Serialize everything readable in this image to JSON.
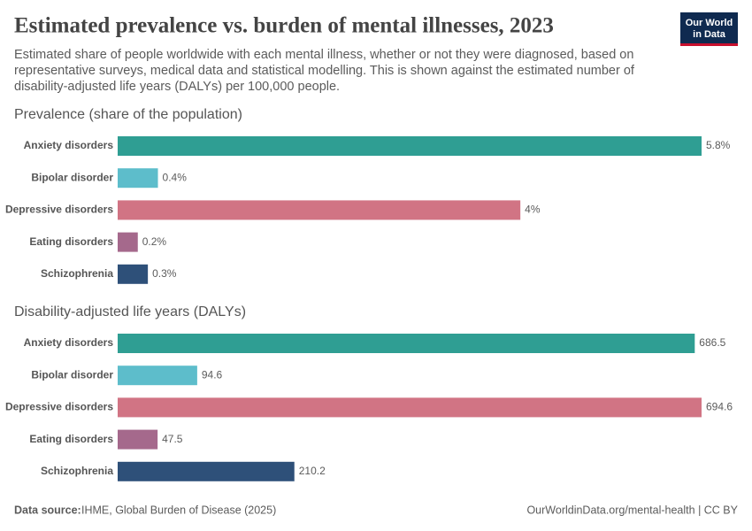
{
  "header": {
    "title": "Estimated prevalence vs. burden of mental illnesses, 2023",
    "subtitle_lines": [
      "Estimated share of people worldwide with each mental illness, whether or not they were diagnosed, based on",
      "representative surveys, medical data and statistical modelling. This is shown against the estimated number of",
      "disability-adjusted life years (DALYs) per 100,000 people."
    ],
    "logo": [
      "Our World",
      "in Data"
    ]
  },
  "chart_data": [
    {
      "type": "bar",
      "orientation": "horizontal",
      "title": "Prevalence (share of the population)",
      "categories": [
        "Anxiety disorders",
        "Bipolar disorder",
        "Depressive disorders",
        "Eating disorders",
        "Schizophrenia"
      ],
      "values": [
        5.8,
        0.4,
        4,
        0.2,
        0.3
      ],
      "value_labels": [
        "5.8%",
        "0.4%",
        "4%",
        "0.2%",
        "0.3%"
      ],
      "colors": [
        "#2f9e93",
        "#5dbdcb",
        "#d17484",
        "#a5698c",
        "#2e5079"
      ]
    },
    {
      "type": "bar",
      "orientation": "horizontal",
      "title": "Disability-adjusted life years (DALYs)",
      "categories": [
        "Anxiety disorders",
        "Bipolar disorder",
        "Depressive disorders",
        "Eating disorders",
        "Schizophrenia"
      ],
      "values": [
        686.5,
        94.6,
        694.6,
        47.5,
        210.2
      ],
      "colors": [
        "#2f9e93",
        "#5dbdcb",
        "#d17484",
        "#a5698c",
        "#2e5079"
      ]
    }
  ],
  "footer": {
    "source_label": "Data source:",
    "source": "IHME, Global Burden of Disease (2025)",
    "url": "OurWorldinData.org/mental-health | CC BY"
  }
}
